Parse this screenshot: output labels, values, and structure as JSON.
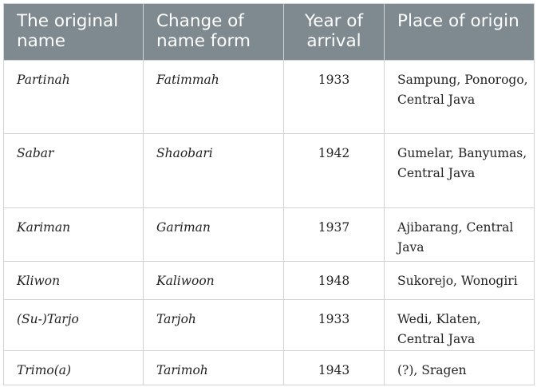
{
  "table": {
    "headers": {
      "col1": "The original name",
      "col2": "Change of name form",
      "col3": "Year of arrival",
      "col4": "Place of origin"
    },
    "rows": [
      {
        "original": "Partinah",
        "changed": "Fatimmah",
        "year": "1933",
        "origin": "Sampung, Ponorogo, Central Java"
      },
      {
        "original": "Sabar",
        "changed": "Shaobari",
        "year": "1942",
        "origin": "Gumelar, Banyumas, Central Java"
      },
      {
        "original": "Kariman",
        "changed": "Gariman",
        "year": "1937",
        "origin": "Ajibarang, Central Java"
      },
      {
        "original": "Kliwon",
        "changed": "Kaliwoon",
        "year": "1948",
        "origin": "Sukorejo, Wonogiri"
      },
      {
        "original": "(Su-)Tarjo",
        "changed": "Tarjoh",
        "year": "1933",
        "origin": "Wedi, Klaten, Central Java"
      },
      {
        "original": "Trimo(a)",
        "changed": "Tarimoh",
        "year": "1943",
        "origin": "(?), Sragen"
      }
    ]
  }
}
